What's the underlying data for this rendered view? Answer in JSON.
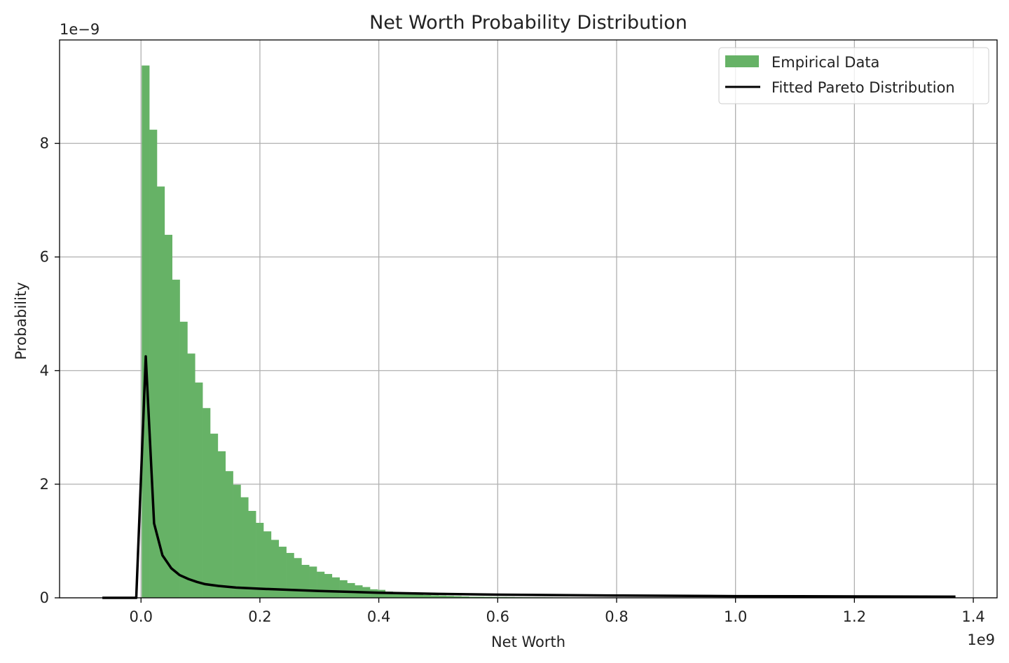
{
  "chart_data": {
    "type": "bar",
    "title": "Net Worth Probability Distribution",
    "xlabel": "Net Worth",
    "ylabel": "Probability",
    "x_offset_text": "1e9",
    "y_offset_text": "1e−9",
    "xlim": [
      -0.137,
      1.44
    ],
    "ylim": [
      0,
      9.82
    ],
    "x_ticks": [
      "0.0",
      "0.2",
      "0.4",
      "0.6",
      "0.8",
      "1.0",
      "1.2",
      "1.4"
    ],
    "x_tick_values": [
      0,
      0.2,
      0.4,
      0.6,
      0.8,
      1.0,
      1.2,
      1.4
    ],
    "y_ticks": [
      "0",
      "2",
      "4",
      "6",
      "8"
    ],
    "y_tick_values": [
      0,
      2,
      4,
      6,
      8
    ],
    "grid": true,
    "legend_position": "top-right",
    "colors": {
      "histogram": "#66b266",
      "line": "#000000",
      "grid": "#b0b0b0"
    },
    "series": [
      {
        "name": "Empirical Data",
        "type": "histogram",
        "bin_start": 0.0012,
        "bin_width": 0.0128,
        "values": [
          9.37,
          8.24,
          7.24,
          6.39,
          5.6,
          4.86,
          4.3,
          3.79,
          3.34,
          2.89,
          2.58,
          2.23,
          1.99,
          1.77,
          1.53,
          1.32,
          1.17,
          1.02,
          0.9,
          0.79,
          0.7,
          0.58,
          0.55,
          0.46,
          0.42,
          0.36,
          0.31,
          0.26,
          0.22,
          0.19,
          0.15,
          0.14,
          0.11,
          0.1,
          0.08,
          0.07,
          0.06,
          0.05,
          0.045,
          0.04,
          0.035,
          0.03,
          0.025,
          0.02,
          0.02,
          0.018,
          0.016,
          0.015,
          0.014,
          0.012,
          0.011,
          0.01,
          0.01,
          0.009,
          0.008,
          0.008,
          0.007,
          0.006,
          0.006,
          0.005,
          0.005,
          0.004,
          0.004,
          0.004,
          0.003,
          0.003,
          0.003,
          0.003,
          0.002,
          0.002,
          0.002,
          0.002,
          0.002,
          0.001,
          0.001,
          0.001,
          0.001,
          0.001,
          0.001,
          0.001
        ]
      },
      {
        "name": "Fitted Pareto Distribution",
        "type": "line",
        "x": [
          -0.065,
          -0.008,
          0.008,
          0.022,
          0.036,
          0.051,
          0.065,
          0.08,
          0.094,
          0.108,
          0.13,
          0.16,
          0.2,
          0.25,
          0.3,
          0.4,
          0.5,
          0.6,
          0.8,
          1.0,
          1.2,
          1.37
        ],
        "y": [
          0,
          0,
          4.25,
          1.31,
          0.75,
          0.52,
          0.4,
          0.33,
          0.28,
          0.24,
          0.21,
          0.18,
          0.16,
          0.14,
          0.12,
          0.09,
          0.07,
          0.055,
          0.04,
          0.03,
          0.025,
          0.02
        ]
      }
    ]
  }
}
